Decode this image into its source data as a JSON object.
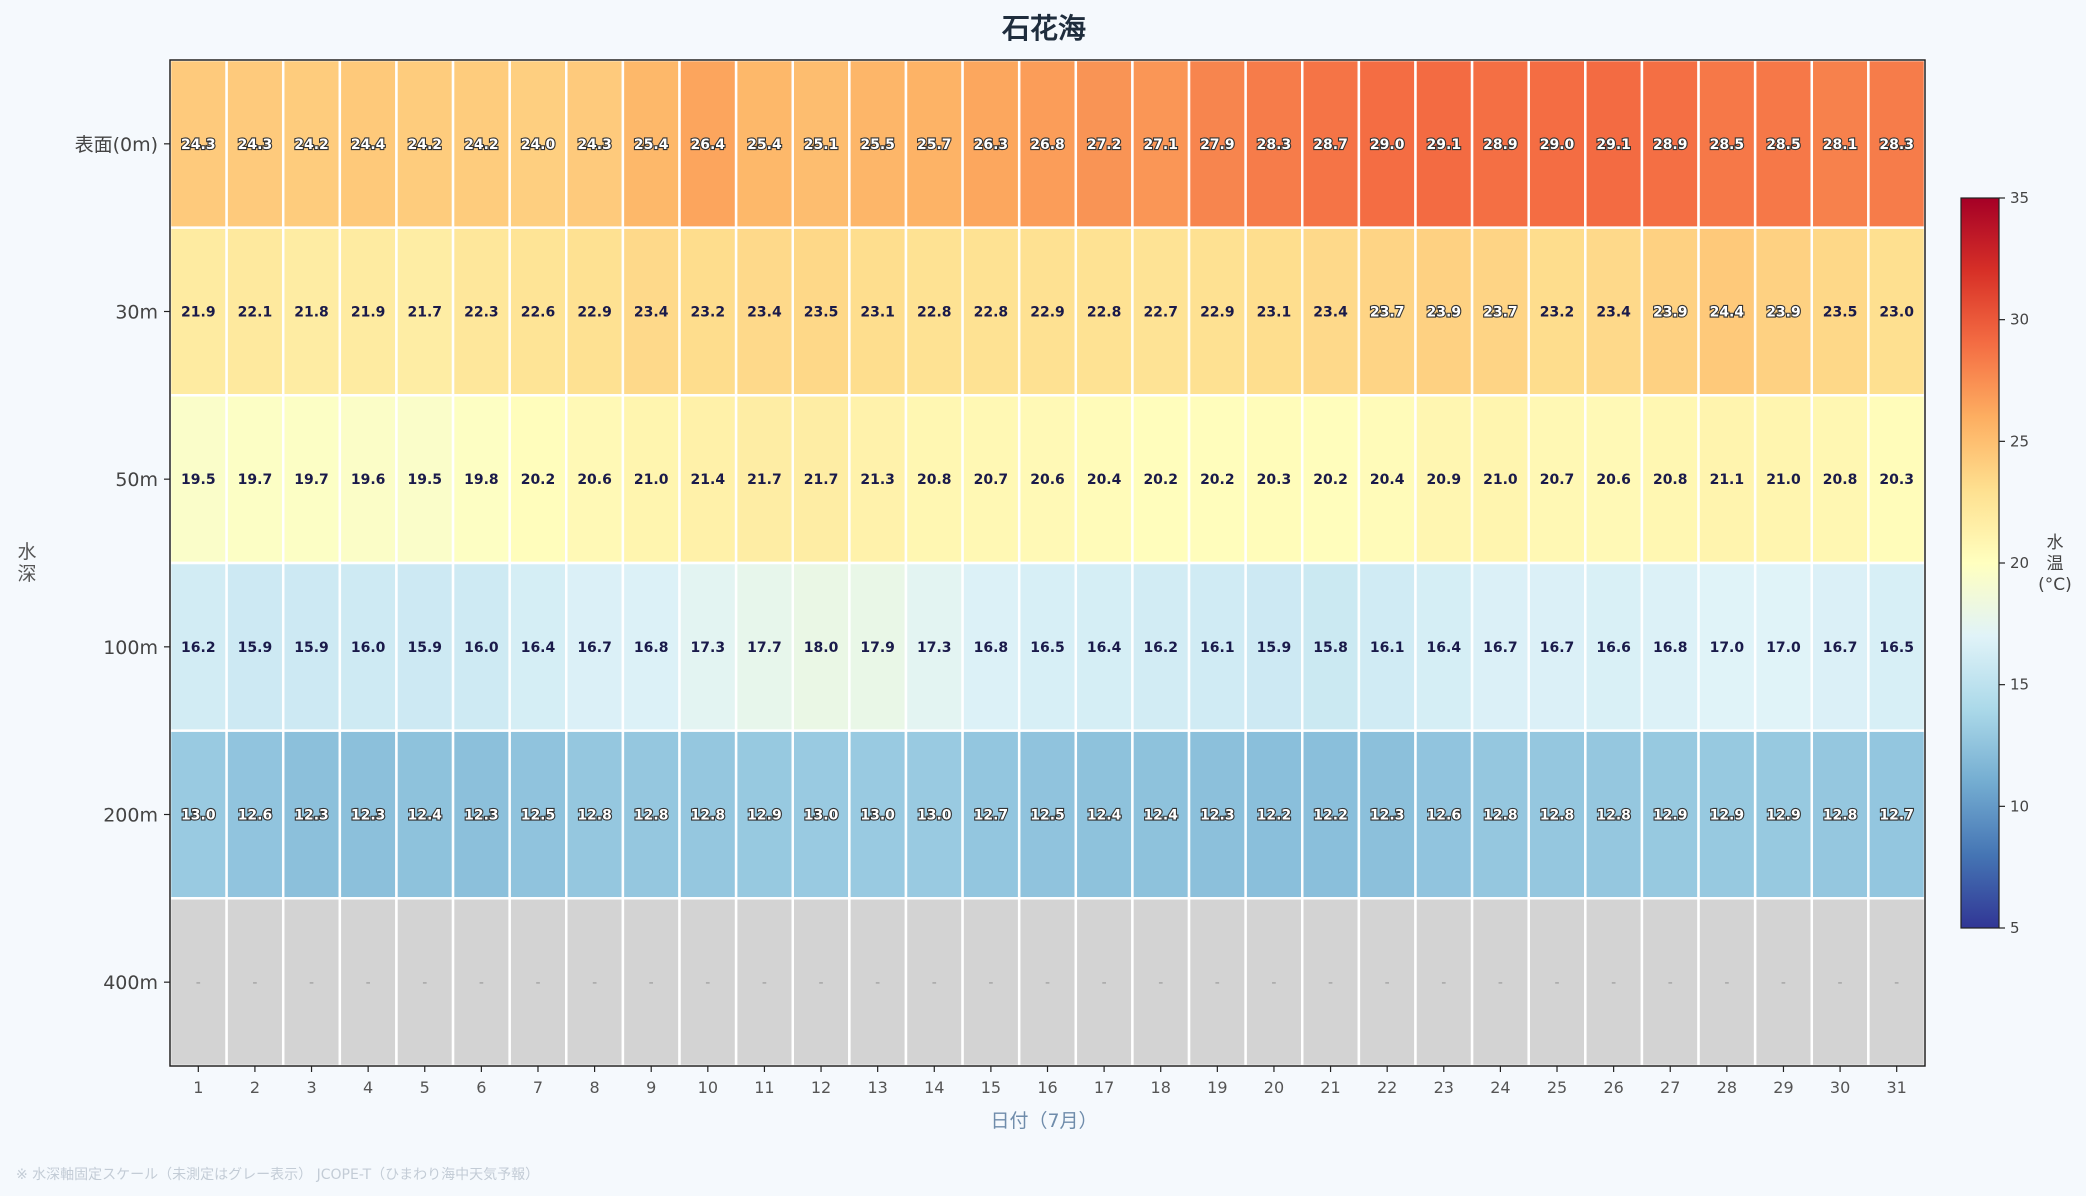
{
  "chart_data": {
    "type": "heatmap",
    "title": "石花海",
    "xlabel": "日付（7月）",
    "ylabel": "水深",
    "x": [
      1,
      2,
      3,
      4,
      5,
      6,
      7,
      8,
      9,
      10,
      11,
      12,
      13,
      14,
      15,
      16,
      17,
      18,
      19,
      20,
      21,
      22,
      23,
      24,
      25,
      26,
      27,
      28,
      29,
      30,
      31
    ],
    "y": [
      "表面(0m)",
      "30m",
      "50m",
      "100m",
      "200m",
      "400m"
    ],
    "values": [
      [
        24.3,
        24.3,
        24.2,
        24.4,
        24.2,
        24.2,
        24.0,
        24.3,
        25.4,
        26.4,
        25.4,
        25.1,
        25.5,
        25.7,
        26.3,
        26.8,
        27.2,
        27.1,
        27.9,
        28.3,
        28.7,
        29.0,
        29.1,
        28.9,
        29.0,
        29.1,
        28.9,
        28.5,
        28.5,
        28.1,
        28.3
      ],
      [
        21.9,
        22.1,
        21.8,
        21.9,
        21.7,
        22.3,
        22.6,
        22.9,
        23.4,
        23.2,
        23.4,
        23.5,
        23.1,
        22.8,
        22.8,
        22.9,
        22.8,
        22.7,
        22.9,
        23.1,
        23.4,
        23.7,
        23.9,
        23.7,
        23.2,
        23.4,
        23.9,
        24.4,
        23.9,
        23.5,
        23.0
      ],
      [
        19.5,
        19.7,
        19.7,
        19.6,
        19.5,
        19.8,
        20.2,
        20.6,
        21.0,
        21.4,
        21.7,
        21.7,
        21.3,
        20.8,
        20.7,
        20.6,
        20.4,
        20.2,
        20.2,
        20.3,
        20.2,
        20.4,
        20.9,
        21.0,
        20.7,
        20.6,
        20.8,
        21.1,
        21.0,
        20.8,
        20.3
      ],
      [
        16.2,
        15.9,
        15.9,
        16.0,
        15.9,
        16.0,
        16.4,
        16.7,
        16.8,
        17.3,
        17.7,
        18.0,
        17.9,
        17.3,
        16.8,
        16.5,
        16.4,
        16.2,
        16.1,
        15.9,
        15.8,
        16.1,
        16.4,
        16.7,
        16.7,
        16.6,
        16.8,
        17.0,
        17.0,
        16.7,
        16.5
      ],
      [
        13.0,
        12.6,
        12.3,
        12.3,
        12.4,
        12.3,
        12.5,
        12.8,
        12.8,
        12.8,
        12.9,
        13.0,
        13.0,
        13.0,
        12.7,
        12.5,
        12.4,
        12.4,
        12.3,
        12.2,
        12.2,
        12.3,
        12.6,
        12.8,
        12.8,
        12.8,
        12.9,
        12.9,
        12.9,
        12.8,
        12.7
      ],
      [
        null,
        null,
        null,
        null,
        null,
        null,
        null,
        null,
        null,
        null,
        null,
        null,
        null,
        null,
        null,
        null,
        null,
        null,
        null,
        null,
        null,
        null,
        null,
        null,
        null,
        null,
        null,
        null,
        null,
        null,
        null
      ]
    ],
    "missing_label": "-",
    "missing_color": "#d3d3d3",
    "colorbar": {
      "label": "水温(°C)",
      "range": [
        5,
        35
      ],
      "ticks": [
        5,
        10,
        15,
        20,
        25,
        30,
        35
      ],
      "colormap": "RdYlBu_r"
    }
  },
  "footnote": "※ 水深軸固定スケール（未測定はグレー表示） JCOPE-T（ひまわり海中天気予報）",
  "colors": {
    "background": "#f5f9fd",
    "title": "#1f2d3d",
    "axis_text": "#555555",
    "xlabel": "#6f8cab",
    "footnote": "#c3ccd6"
  }
}
